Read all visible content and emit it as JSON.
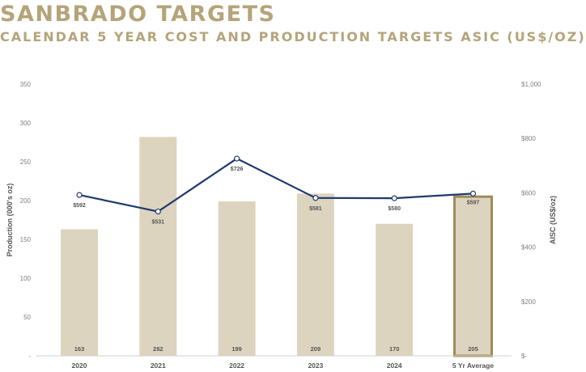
{
  "header": {
    "title": "SANBRADO TARGETS",
    "subtitle": "CALENDAR 5 YEAR COST AND PRODUCTION TARGETS ASIC (US$/OZ)"
  },
  "chart_data": {
    "type": "bar",
    "categories": [
      "2020",
      "2021",
      "2022",
      "2023",
      "2024",
      "5 Yr Average"
    ],
    "series": [
      {
        "values": [
          163,
          282,
          199,
          209,
          170,
          205
        ],
        "value_labels": [
          "163",
          "282",
          "199",
          "209",
          "170",
          "205"
        ],
        "axis": "left",
        "color": "#ddd4bf",
        "highlight_index": 5,
        "highlight_border_color": "#9f8c58"
      },
      {
        "type": "line",
        "values": [
          592,
          531,
          726,
          581,
          580,
          597
        ],
        "value_labels": [
          "$592",
          "$531",
          "$726",
          "$581",
          "$580",
          "$597"
        ],
        "axis": "right",
        "color": "#1f3a6e"
      }
    ],
    "ylabel": "Production (000's oz)",
    "y2label": "AISC (US$/oz)",
    "ylim": [
      0,
      350
    ],
    "y2lim": [
      0,
      1000
    ],
    "yticks": [
      "-",
      "50",
      "100",
      "150",
      "200",
      "250",
      "300",
      "350"
    ],
    "ytick_values": [
      0,
      50,
      100,
      150,
      200,
      250,
      300,
      350
    ],
    "y2ticks": [
      "$-",
      "$200",
      "$400",
      "$600",
      "$800",
      "$1,000"
    ],
    "y2tick_values": [
      0,
      200,
      400,
      600,
      800,
      1000
    ],
    "grid": false,
    "legend": "none"
  },
  "colors": {
    "title": "#b5a47a",
    "bar": "#ddd4bf",
    "line": "#1f3a6e",
    "axis_text": "#7f7f7f"
  }
}
